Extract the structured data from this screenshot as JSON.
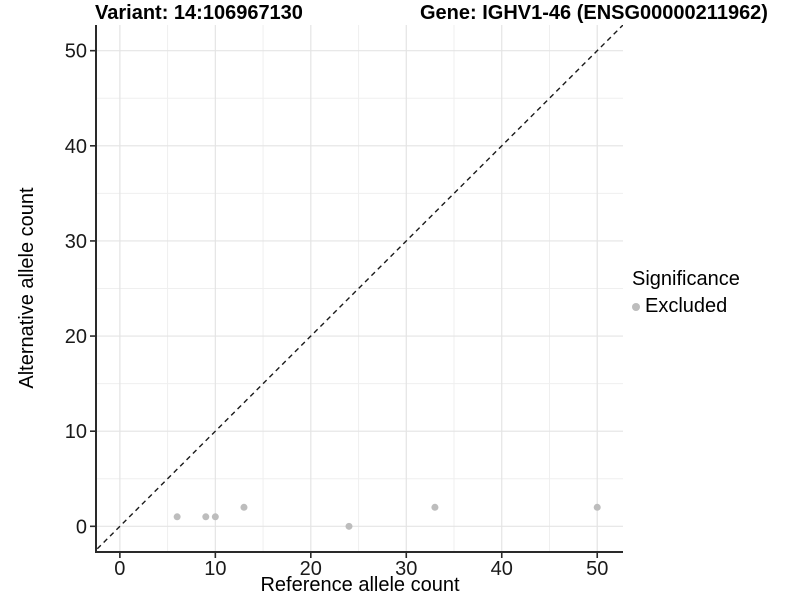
{
  "chart_data": {
    "type": "scatter",
    "title_left": "Variant: 14:106967130",
    "title_right": "Gene: IGHV1-46 (ENSG00000211962)",
    "xlabel": "Reference allele count",
    "ylabel": "Alternative allele count",
    "xticks": [
      0,
      10,
      20,
      30,
      40,
      50
    ],
    "yticks": [
      0,
      10,
      20,
      30,
      40,
      50
    ],
    "xlim": [
      -2.5,
      52.7
    ],
    "ylim": [
      -2.7,
      52.7
    ],
    "grid": true,
    "identity_line": {
      "style": "dashed",
      "slope": 1,
      "intercept": 0,
      "color": "#1a1a1a"
    },
    "series": [
      {
        "name": "Excluded",
        "color": "#bdbdbd",
        "points": [
          [
            6,
            1
          ],
          [
            9,
            1
          ],
          [
            10,
            1
          ],
          [
            13,
            2
          ],
          [
            24,
            0
          ],
          [
            33,
            2
          ],
          [
            50,
            2
          ]
        ]
      }
    ],
    "legend": {
      "title": "Significance",
      "position": "right",
      "items": [
        {
          "label": "Excluded",
          "color": "#bdbdbd"
        }
      ]
    },
    "colors": {
      "background": "#ffffff",
      "grid_major": "#e4e4e4",
      "grid_minor": "#efefef",
      "axis": "#2a2a2a",
      "tick_label": "#1a1a1a"
    }
  }
}
